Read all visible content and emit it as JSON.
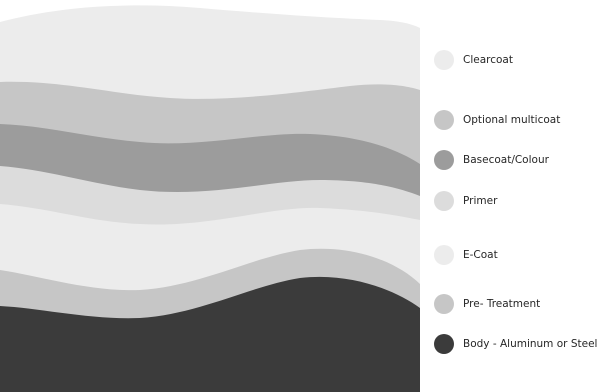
{
  "layers": [
    {
      "label": "Clearcoat",
      "color": "#ececec"
    },
    {
      "label": "Optional multicoat",
      "color": "#c6c6c6"
    },
    {
      "label": "Basecoat/Colour",
      "color": "#9c9c9c"
    },
    {
      "label": "Primer",
      "color": "#dcdcdc"
    },
    {
      "label": "E-Coat",
      "color": "#ececec"
    },
    {
      "label": "Pre- Treatment",
      "color": "#c6c6c6"
    },
    {
      "label": "Body - Aluminum or Steel",
      "color": "#3b3b3b"
    }
  ]
}
